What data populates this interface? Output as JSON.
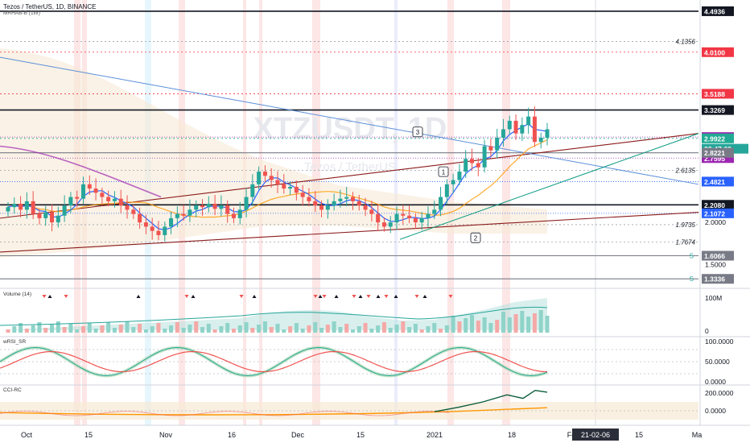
{
  "header": {
    "title": "Tezos / TetherUS, 1D, BINANCE",
    "study": "MRHAB-B (1W)"
  },
  "watermark": {
    "big": "XTZUSDT, 1D",
    "small": "Tezos / TetherUS"
  },
  "colors": {
    "bull": "#26a69a",
    "bear": "#ef5350",
    "ma_blue": "#2962ff",
    "ma_purple": "#9c27b0",
    "ma_orange": "#ff9800",
    "channel_red": "#8b1a1a",
    "trend_green": "#089981",
    "trend_blue": "#5b8fd9",
    "level_red": "#f23645",
    "label_black": "#131722",
    "label_red": "#f23645",
    "label_green": "#22ab94",
    "label_purple": "#9c27b0",
    "label_blue": "#2962ff",
    "label_grey": "#787b86",
    "label_teal": "#26a69a"
  },
  "chart_data": [
    {
      "type": "candlestick",
      "title": "Tezos / TetherUS, 1D, BINANCE",
      "ylim": [
        1.25,
        4.55
      ],
      "x_ticks": [
        "Oct",
        "15",
        "Nov",
        "16",
        "Dec",
        "15",
        "2021",
        "18",
        "Fe",
        "15",
        "Ma"
      ],
      "x_cursor_label": "21-02-06",
      "y_ticks": [
        "1.5000",
        "2.0000"
      ],
      "ohlc_close": [
        2.18,
        2.22,
        2.15,
        2.25,
        2.1,
        2.05,
        2.12,
        2.0,
        2.08,
        2.2,
        2.3,
        2.28,
        2.45,
        2.4,
        2.35,
        2.3,
        2.25,
        2.28,
        2.2,
        2.15,
        2.1,
        2.0,
        1.95,
        1.9,
        1.85,
        1.95,
        2.05,
        2.1,
        2.08,
        2.15,
        2.2,
        2.18,
        2.22,
        2.16,
        2.2,
        2.1,
        2.05,
        2.15,
        2.3,
        2.45,
        2.6,
        2.55,
        2.5,
        2.45,
        2.4,
        2.42,
        2.35,
        2.3,
        2.25,
        2.2,
        2.15,
        2.2,
        2.25,
        2.28,
        2.3,
        2.25,
        2.2,
        2.15,
        2.1,
        2.0,
        1.95,
        2.0,
        2.1,
        2.08,
        2.05,
        2.0,
        2.05,
        2.1,
        2.15,
        2.3,
        2.45,
        2.5,
        2.6,
        2.75,
        2.7,
        2.65,
        2.9,
        2.85,
        3.0,
        3.1,
        3.2,
        3.05,
        3.15,
        3.25,
        2.95,
        3.0,
        3.1
      ],
      "levels": [
        {
          "value": 4.4936,
          "label": "4.4936",
          "style": "label_black"
        },
        {
          "value": 4.1356,
          "label": "4.1356",
          "style": "text"
        },
        {
          "value": 4.01,
          "label": "4.0100",
          "style": "label_red"
        },
        {
          "value": 3.5188,
          "label": "3.5188",
          "style": "label_red"
        },
        {
          "value": 3.3269,
          "label": "3.3269",
          "style": "label_black"
        },
        {
          "value": 3.0079,
          "label": "3.0079",
          "style": "label_purple"
        },
        {
          "value": 2.9922,
          "label": "2.9922",
          "style": "label_green"
        },
        {
          "value": 2.87,
          "label": "23:47:00",
          "style": "label_teal"
        },
        {
          "value": 2.7595,
          "label": "2.7595",
          "style": "label_purple"
        },
        {
          "value": 2.6135,
          "label": "2.6135",
          "style": "text"
        },
        {
          "value": 2.8221,
          "label": "2.8221",
          "style": "label_grey"
        },
        {
          "value": 2.4821,
          "label": "2.4821",
          "style": "label_blue"
        },
        {
          "value": 2.208,
          "label": "2.2080",
          "style": "label_black"
        },
        {
          "value": 2.1072,
          "label": "2.1072",
          "style": "label_blue"
        },
        {
          "value": 1.9735,
          "label": "1.9735",
          "style": "text"
        },
        {
          "value": 1.7674,
          "label": "1.7674",
          "style": "text"
        },
        {
          "value": 1.6066,
          "label": "1.6066",
          "style": "label_grey"
        },
        {
          "value": 1.3336,
          "label": "1.3336",
          "style": "label_grey"
        }
      ],
      "wave_labels": [
        "1",
        "2",
        "3"
      ]
    },
    {
      "type": "bar",
      "title": "Volume (14)",
      "y_ticks": [
        "100M",
        "0"
      ]
    },
    {
      "type": "line",
      "title": "wRSI_SR",
      "y_ticks": [
        "100.0000",
        "50.0000",
        "0.0000"
      ]
    },
    {
      "type": "line",
      "title": "CCI-RC",
      "y_ticks": [
        "200.0000",
        "0.0000"
      ]
    }
  ]
}
